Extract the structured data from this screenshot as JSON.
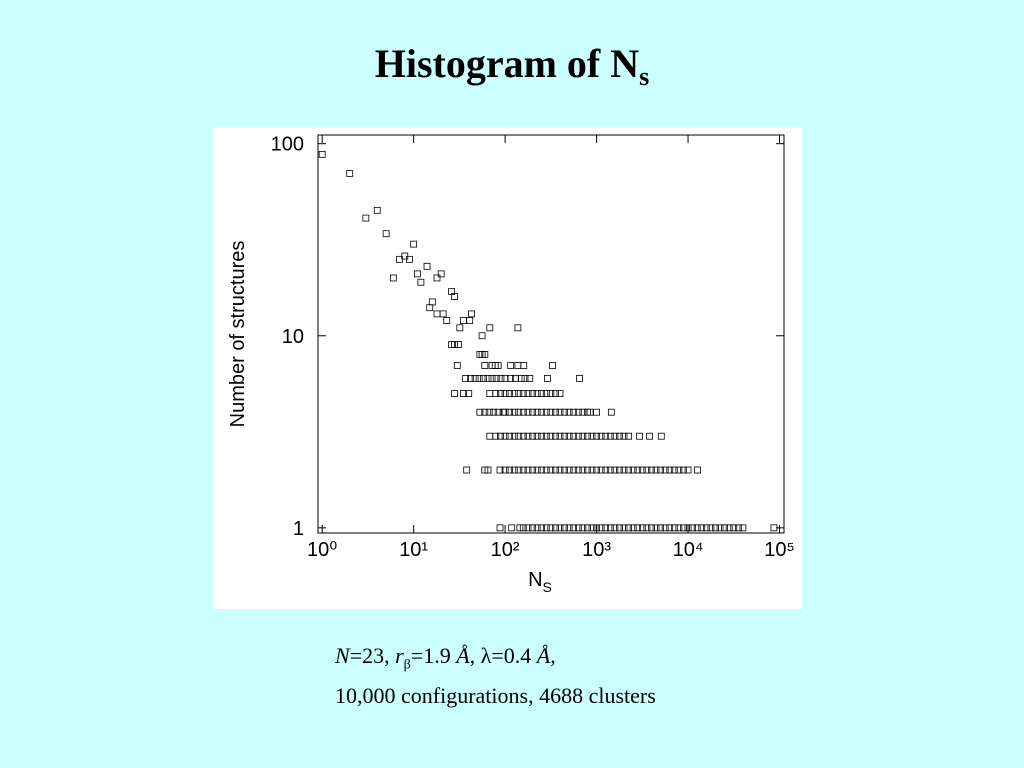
{
  "slide": {
    "title": "Histogram of N",
    "title_subscript": "s",
    "caption": {
      "line1": [
        "N",
        "=23,  ",
        "r",
        "β",
        "=1.9 ",
        "Å",
        ",  λ=0.4 ",
        "Å",
        ","
      ],
      "line2": "10,000 configurations, 4688 clusters"
    }
  },
  "chart_data": {
    "type": "scatter",
    "xlabel": "N",
    "xlabel_subscript": "S",
    "ylabel": "Number of structures",
    "xscale": "log",
    "yscale": "log",
    "xlim": [
      0.9,
      112000
    ],
    "ylim": [
      0.94,
      111
    ],
    "xticks": [
      {
        "value": 1,
        "label": "10⁰"
      },
      {
        "value": 10,
        "label": "10¹"
      },
      {
        "value": 100,
        "label": "10²"
      },
      {
        "value": 1000,
        "label": "10³"
      },
      {
        "value": 10000,
        "label": "10⁴"
      },
      {
        "value": 100000,
        "label": "10⁵"
      }
    ],
    "yticks": [
      1,
      10,
      100
    ],
    "color": "#000000",
    "x": [
      1,
      2,
      3,
      4,
      5,
      6,
      7,
      8,
      9,
      10,
      11,
      12,
      14,
      15,
      16,
      18,
      20,
      18,
      21,
      23,
      26,
      28,
      26,
      28,
      31,
      32,
      35,
      41,
      43,
      56,
      68,
      138,
      53,
      56,
      60,
      30,
      60,
      72,
      78,
      84,
      115,
      138,
      160,
      330,
      37,
      42,
      47,
      52,
      58,
      65,
      72,
      80,
      90,
      100,
      115,
      130,
      150,
      165,
      186,
      290,
      650,
      28,
      35,
      40,
      68,
      79,
      89,
      100,
      112,
      126,
      141,
      158,
      178,
      200,
      224,
      251,
      282,
      316,
      355,
      398,
      53,
      60,
      67,
      75,
      84,
      95,
      100,
      112,
      126,
      141,
      158,
      178,
      200,
      224,
      251,
      282,
      316,
      355,
      398,
      447,
      501,
      562,
      631,
      708,
      794,
      850,
      1000,
      1450,
      68,
      79,
      89,
      100,
      112,
      126,
      141,
      158,
      178,
      200,
      224,
      251,
      282,
      316,
      355,
      398,
      447,
      501,
      562,
      631,
      708,
      794,
      891,
      1000,
      1122,
      1259,
      1413,
      1585,
      1778,
      1995,
      2239,
      2950,
      3800,
      5100,
      38,
      60,
      65,
      88,
      100,
      112,
      126,
      141,
      158,
      178,
      200,
      224,
      251,
      282,
      316,
      355,
      398,
      447,
      501,
      562,
      631,
      708,
      794,
      891,
      1000,
      1122,
      1259,
      1413,
      1585,
      1778,
      1995,
      2239,
      2512,
      2818,
      3162,
      3548,
      3981,
      4467,
      5012,
      5623,
      6310,
      7079,
      7943,
      8913,
      10000,
      12700,
      88,
      118,
      145,
      158,
      178,
      200,
      224,
      251,
      282,
      316,
      355,
      398,
      447,
      501,
      562,
      631,
      708,
      794,
      891,
      1000,
      1122,
      1259,
      1413,
      1585,
      1778,
      1995,
      2239,
      2512,
      2818,
      3162,
      3548,
      3981,
      4467,
      5012,
      5623,
      6310,
      7079,
      7943,
      8913,
      10000,
      11220,
      12589,
      14125,
      15849,
      17783,
      19953,
      22387,
      25119,
      28184,
      31623,
      35481,
      39811,
      87000
    ],
    "values": [
      88,
      70,
      41,
      45,
      34,
      20,
      25,
      26,
      25,
      30,
      21,
      19,
      23,
      14,
      15,
      20,
      21,
      13,
      13,
      12,
      17,
      16,
      9,
      9,
      9,
      11,
      12,
      12,
      13,
      10,
      11,
      11,
      8,
      8,
      8,
      7,
      7,
      7,
      7,
      7,
      7,
      7,
      7,
      7,
      6,
      6,
      6,
      6,
      6,
      6,
      6,
      6,
      6,
      6,
      6,
      6,
      6,
      6,
      6,
      6,
      6,
      5,
      5,
      5,
      5,
      5,
      5,
      5,
      5,
      5,
      5,
      5,
      5,
      5,
      5,
      5,
      5,
      5,
      5,
      5,
      4,
      4,
      4,
      4,
      4,
      4,
      4,
      4,
      4,
      4,
      4,
      4,
      4,
      4,
      4,
      4,
      4,
      4,
      4,
      4,
      4,
      4,
      4,
      4,
      4,
      4,
      4,
      4,
      3,
      3,
      3,
      3,
      3,
      3,
      3,
      3,
      3,
      3,
      3,
      3,
      3,
      3,
      3,
      3,
      3,
      3,
      3,
      3,
      3,
      3,
      3,
      3,
      3,
      3,
      3,
      3,
      3,
      3,
      3,
      3,
      3,
      3,
      2,
      2,
      2,
      2,
      2,
      2,
      2,
      2,
      2,
      2,
      2,
      2,
      2,
      2,
      2,
      2,
      2,
      2,
      2,
      2,
      2,
      2,
      2,
      2,
      2,
      2,
      2,
      2,
      2,
      2,
      2,
      2,
      2,
      2,
      2,
      2,
      2,
      2,
      2,
      2,
      2,
      2,
      2,
      2,
      2,
      2,
      1,
      1,
      1,
      1,
      1,
      1,
      1,
      1,
      1,
      1,
      1,
      1,
      1,
      1,
      1,
      1,
      1,
      1,
      1,
      1,
      1,
      1,
      1,
      1,
      1,
      1,
      1,
      1,
      1,
      1,
      1,
      1,
      1,
      1,
      1,
      1,
      1,
      1,
      1,
      1,
      1,
      1,
      1,
      1,
      1,
      1,
      1,
      1,
      1,
      1,
      1,
      1,
      1
    ]
  }
}
